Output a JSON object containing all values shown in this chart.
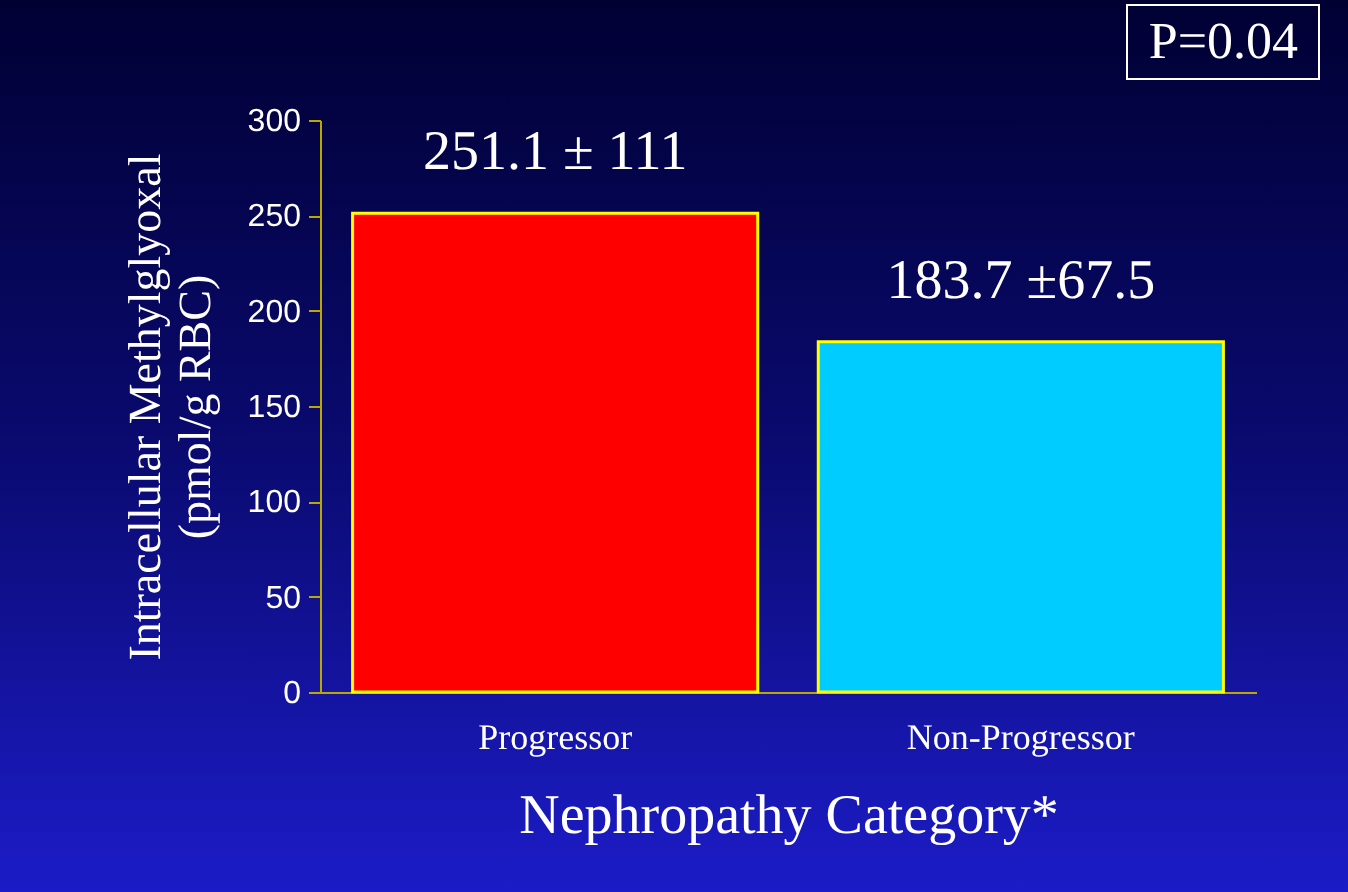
{
  "chart_data": {
    "type": "bar",
    "categories": [
      "Progressor",
      "Non-Progressor"
    ],
    "values": [
      251.1,
      183.7
    ],
    "colors": [
      "#ff0000",
      "#00ccff"
    ],
    "value_labels": [
      "251.1 ± 111",
      "183.7 ±67.5"
    ],
    "xlabel": "Nephropathy Category*",
    "ylabel": "Intracellular Methylglyoxal\n(pmol/g RBC)",
    "ylim": [
      0,
      300
    ],
    "yticks": [
      0,
      50,
      100,
      150,
      200,
      250,
      300
    ],
    "annotations": [
      "P=0.04"
    ],
    "grid": false
  }
}
